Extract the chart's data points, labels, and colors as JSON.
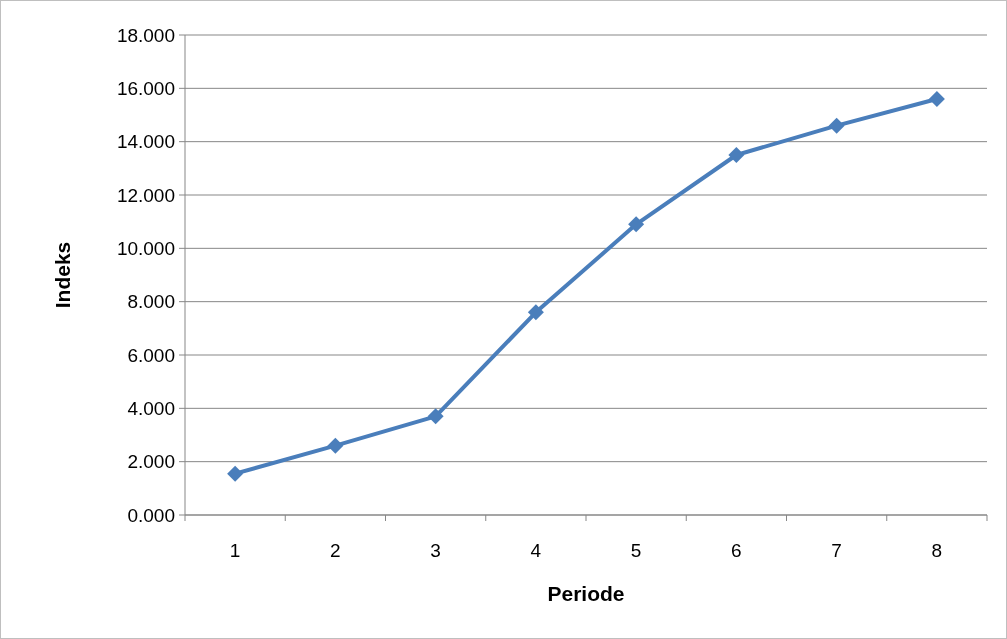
{
  "chart_data": {
    "type": "line",
    "xlabel": "Periode",
    "ylabel": "Indeks",
    "categories": [
      "1",
      "2",
      "3",
      "4",
      "5",
      "6",
      "7",
      "8"
    ],
    "series": [
      {
        "color": "#4a7ebb",
        "values": [
          1.55,
          2.6,
          3.7,
          7.6,
          10.9,
          13.5,
          14.6,
          15.6
        ]
      }
    ],
    "ylim": [
      0,
      18
    ],
    "yticks": [
      {
        "value": 0,
        "label": "0.000"
      },
      {
        "value": 2,
        "label": "2.000"
      },
      {
        "value": 4,
        "label": "4.000"
      },
      {
        "value": 6,
        "label": "6.000"
      },
      {
        "value": 8,
        "label": "8.000"
      },
      {
        "value": 10,
        "label": "10.000"
      },
      {
        "value": 12,
        "label": "12.000"
      },
      {
        "value": 14,
        "label": "14.000"
      },
      {
        "value": 16,
        "label": "16.000"
      },
      {
        "value": 18,
        "label": "18.000"
      }
    ],
    "grid": "y",
    "marker": "diamond",
    "line_style": "solid"
  }
}
